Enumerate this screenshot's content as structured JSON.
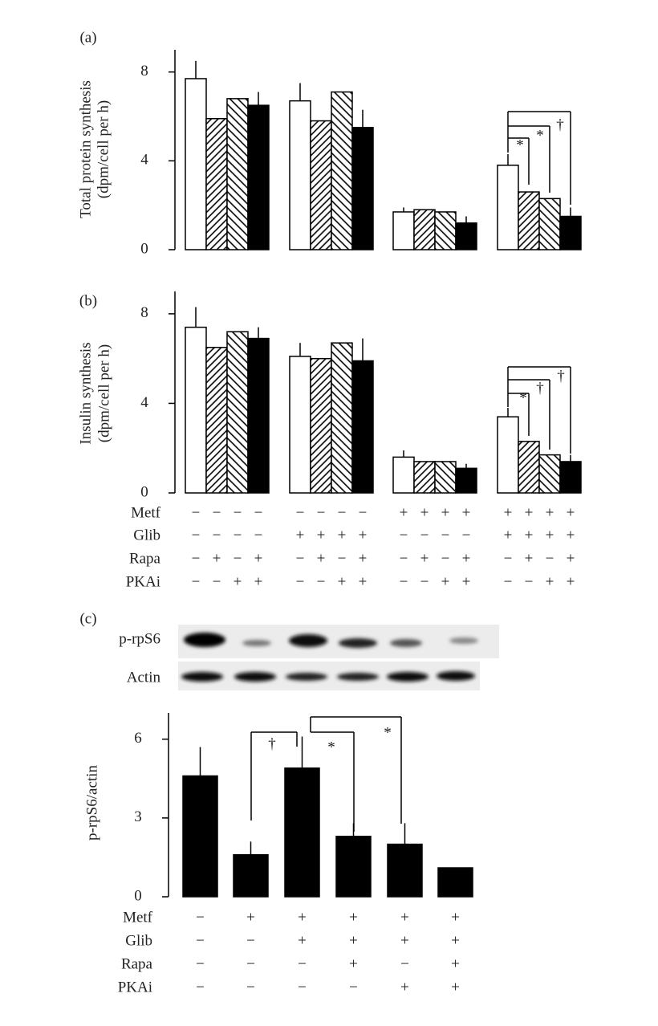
{
  "chart_data": [
    {
      "type": "bar",
      "panel_label": "(a)",
      "ylabel": [
        "Total protein synthesis",
        "(dpm/cell per h)"
      ],
      "ylim": [
        0,
        9
      ],
      "yticks": [
        0,
        4,
        8
      ],
      "categories": [
        null,
        null,
        null,
        null
      ],
      "series": [
        {
          "pattern": "open",
          "values": [
            7.7,
            6.7,
            1.7,
            3.8
          ],
          "errors": [
            0.8,
            0.8,
            0.2,
            0.5
          ]
        },
        {
          "pattern": "back",
          "values": [
            5.9,
            5.8,
            1.8,
            2.6
          ],
          "errors": [
            null,
            null,
            null,
            null
          ]
        },
        {
          "pattern": "forward",
          "values": [
            6.8,
            7.1,
            1.7,
            2.3
          ],
          "errors": [
            null,
            null,
            null,
            null
          ]
        },
        {
          "pattern": "solid",
          "values": [
            6.5,
            5.5,
            1.2,
            1.5
          ],
          "errors": [
            0.6,
            0.8,
            0.3,
            0.4
          ]
        }
      ],
      "annotations": [
        "*",
        "*",
        "†"
      ]
    },
    {
      "type": "bar",
      "panel_label": "(b)",
      "ylabel": [
        "Insulin synthesis",
        "(dpm/cell per h)"
      ],
      "ylim": [
        0,
        9
      ],
      "yticks": [
        0,
        4,
        8
      ],
      "categories": [
        null,
        null,
        null,
        null
      ],
      "series": [
        {
          "pattern": "open",
          "values": [
            7.4,
            6.1,
            1.6,
            3.4
          ],
          "errors": [
            0.9,
            0.6,
            0.3,
            0.4
          ]
        },
        {
          "pattern": "back",
          "values": [
            6.5,
            6.0,
            1.4,
            2.3
          ],
          "errors": [
            null,
            null,
            null,
            null
          ]
        },
        {
          "pattern": "forward",
          "values": [
            7.2,
            6.7,
            1.4,
            1.7
          ],
          "errors": [
            null,
            null,
            null,
            null
          ]
        },
        {
          "pattern": "solid",
          "values": [
            6.9,
            5.9,
            1.1,
            1.4
          ],
          "errors": [
            0.5,
            1.0,
            0.2,
            0.3
          ]
        }
      ],
      "annotations": [
        "*",
        "†",
        "†"
      ],
      "conditions": {
        "labels": [
          "Metf",
          "Glib",
          "Rapa",
          "PKAi"
        ],
        "signs": [
          [
            "−",
            "−",
            "−",
            "−",
            "−",
            "−",
            "−",
            "−",
            "+",
            "+",
            "+",
            "+",
            "+",
            "+",
            "+",
            "+"
          ],
          [
            "−",
            "−",
            "−",
            "−",
            "+",
            "+",
            "+",
            "+",
            "−",
            "−",
            "−",
            "−",
            "+",
            "+",
            "+",
            "+"
          ],
          [
            "−",
            "+",
            "−",
            "+",
            "−",
            "+",
            "−",
            "+",
            "−",
            "+",
            "−",
            "+",
            "−",
            "+",
            "−",
            "+"
          ],
          [
            "−",
            "−",
            "+",
            "+",
            "−",
            "−",
            "+",
            "+",
            "−",
            "−",
            "+",
            "+",
            "−",
            "−",
            "+",
            "+"
          ]
        ]
      }
    },
    {
      "type": "bar",
      "panel_label": "(c)",
      "blot_labels": [
        "p-rpS6",
        "Actin"
      ],
      "ylabel": [
        "p-rpS6/actin"
      ],
      "ylim": [
        0,
        7
      ],
      "yticks": [
        0,
        3,
        6
      ],
      "categories": [
        null,
        null,
        null,
        null,
        null,
        null
      ],
      "series": [
        {
          "pattern": "solid",
          "values": [
            4.6,
            1.6,
            4.9,
            2.3,
            2.0,
            1.1
          ],
          "errors": [
            1.1,
            0.5,
            1.2,
            0.5,
            0.8,
            null
          ]
        }
      ],
      "annotations": [
        "†",
        "*",
        "*"
      ],
      "conditions": {
        "labels": [
          "Metf",
          "Glib",
          "Rapa",
          "PKAi"
        ],
        "signs": [
          [
            "−",
            "+",
            "+",
            "+",
            "+",
            "+"
          ],
          [
            "−",
            "−",
            "+",
            "+",
            "+",
            "+"
          ],
          [
            "−",
            "−",
            "−",
            "+",
            "−",
            "+"
          ],
          [
            "−",
            "−",
            "−",
            "−",
            "+",
            "+"
          ]
        ]
      }
    }
  ]
}
